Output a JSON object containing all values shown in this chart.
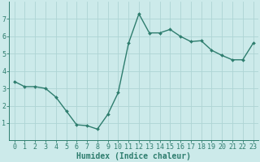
{
  "x": [
    0,
    1,
    2,
    3,
    4,
    5,
    6,
    7,
    8,
    9,
    10,
    11,
    12,
    13,
    14,
    15,
    16,
    17,
    18,
    19,
    20,
    21,
    22,
    23
  ],
  "y": [
    3.4,
    3.1,
    3.1,
    3.0,
    2.5,
    1.7,
    0.9,
    0.85,
    0.65,
    1.5,
    2.75,
    5.6,
    7.3,
    6.2,
    6.2,
    6.4,
    6.0,
    5.7,
    5.75,
    5.2,
    4.9,
    4.65,
    4.65,
    5.6
  ],
  "xlabel": "Humidex (Indice chaleur)",
  "ylim": [
    0,
    8
  ],
  "xlim": [
    -0.5,
    23.5
  ],
  "yticks": [
    1,
    2,
    3,
    4,
    5,
    6,
    7
  ],
  "xticks": [
    0,
    1,
    2,
    3,
    4,
    5,
    6,
    7,
    8,
    9,
    10,
    11,
    12,
    13,
    14,
    15,
    16,
    17,
    18,
    19,
    20,
    21,
    22,
    23
  ],
  "line_color": "#2e7d6e",
  "bg_color": "#cceaea",
  "grid_color": "#aed4d4",
  "marker": "D",
  "marker_size": 2.0,
  "line_width": 1.0,
  "xlabel_fontsize": 7,
  "tick_fontsize": 6,
  "ylabel_fontsize": 6
}
